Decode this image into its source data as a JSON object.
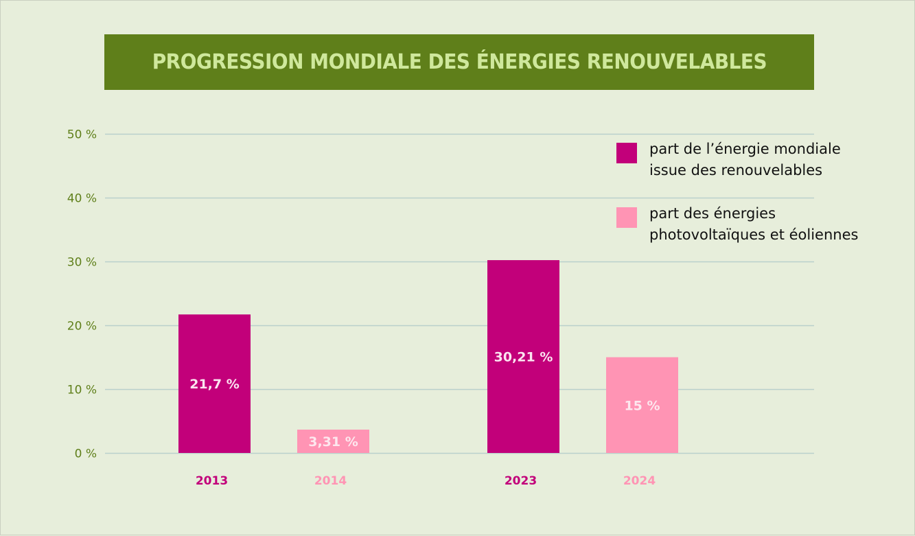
{
  "title": "PROGRESSION MONDIALE DES ÉNERGIES RENOUVELABLES",
  "colors": {
    "background": "#e7eedb",
    "title_bg": "#5f7f1a",
    "title_text": "#cfe89c",
    "axis_text": "#5f7f1a",
    "grid": "#b9d0cc",
    "series_main": "#c2007a",
    "series_light": "#ff94b4",
    "label_on_main": "#fbe4f0",
    "label_on_light": "#fde7ee"
  },
  "chart_data": {
    "type": "bar",
    "title": "PROGRESSION MONDIALE DES ÉNERGIES RENOUVELABLES",
    "xlabel": "",
    "ylabel": "",
    "ylim": [
      0,
      50
    ],
    "yticks": [
      0,
      10,
      20,
      30,
      40,
      50
    ],
    "ytick_labels": [
      "0 %",
      "10 %",
      "20 %",
      "30 %",
      "40 %",
      "50 %"
    ],
    "grid": true,
    "legend_position": "top-right",
    "categories": [
      "2013",
      "2014",
      "2023",
      "2024"
    ],
    "series": [
      {
        "name": "part de l’énergie mondiale issue des renouvelables",
        "color": "#c2007a",
        "legend_label": "part de l’énergie mondiale\nissue des renouvelables"
      },
      {
        "name": "part des énergies photovoltaïques et éoliennes",
        "color": "#ff94b4",
        "legend_label": "part des énergies\nphotovoltaïques et éoliennes"
      }
    ],
    "bars": [
      {
        "category": "2013",
        "series": 0,
        "value": 21.7,
        "label": "21,7 %"
      },
      {
        "category": "2014",
        "series": 1,
        "value": 3.31,
        "label": "3,31 %"
      },
      {
        "category": "2023",
        "series": 0,
        "value": 30.21,
        "label": "30,21 %"
      },
      {
        "category": "2024",
        "series": 1,
        "value": 15,
        "label": "15 %"
      }
    ]
  }
}
